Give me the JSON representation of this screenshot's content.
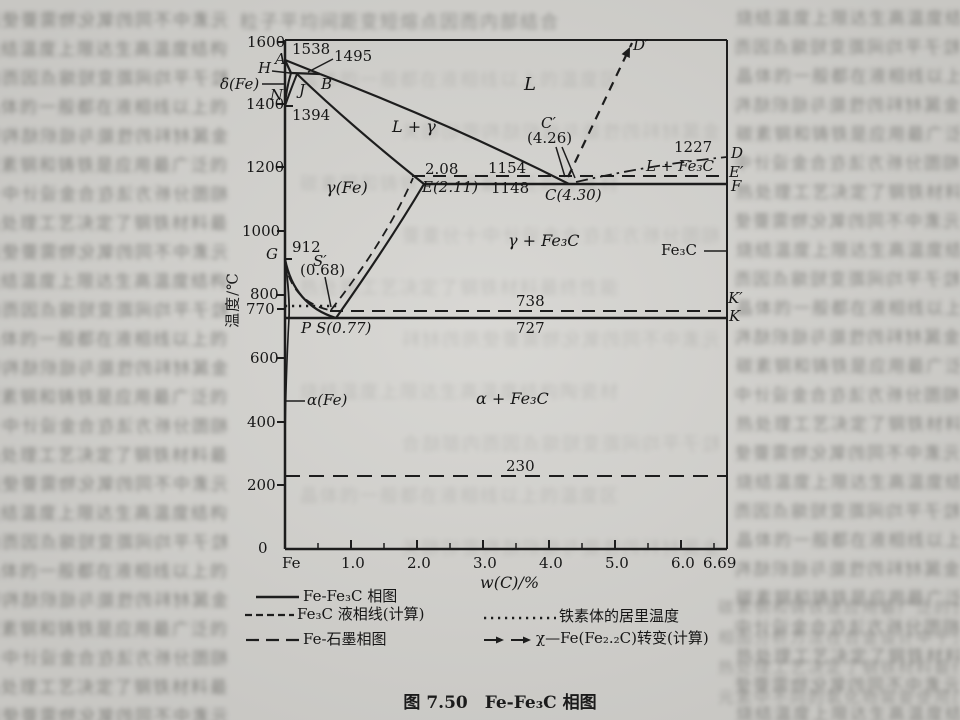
{
  "figure": {
    "caption": "图 7.50　Fe-Fe₃C 相图",
    "xlabel": "w(C)/%",
    "ylabel": "温度/℃"
  },
  "axis": {
    "y": [
      "1600",
      "1400",
      "1200",
      "1000",
      "800",
      "770",
      "600",
      "400",
      "200",
      "0"
    ],
    "x": [
      "Fe",
      "1.0",
      "2.0",
      "3.0",
      "4.0",
      "5.0",
      "6.0",
      "6.69"
    ]
  },
  "labels": {
    "A": "A",
    "t1538": "1538",
    "t1495": "1495",
    "H": "H",
    "B": "B",
    "N": "N",
    "J": "J",
    "t1394": "1394",
    "delta_fe": "δ(Fe)",
    "L": "L",
    "L_gamma": "L + γ",
    "D_prime": "D′",
    "C_prime": "C′",
    "c_prime_val": "(4.26)",
    "t1227": "1227",
    "D": "D",
    "E_prime": "E′",
    "F": "F",
    "L_fe3c": "L + Fe₃C",
    "gamma_fe": "γ(Fe)",
    "t2_08": "2.08",
    "t1154": "1154",
    "E_val": "E(2.11)",
    "t1148": "1148",
    "C_val": "C(4.30)",
    "gamma_fe3c": "γ + Fe₃C",
    "fe3c": "Fe₃C",
    "t912": "912",
    "G": "G",
    "S_prime": "S′",
    "s_prime_val": "(0.68)",
    "P": "P",
    "S_val": "S(0.77)",
    "t738": "738",
    "t727": "727",
    "K_prime": "K′",
    "K": "K",
    "alpha_fe": "α(Fe)",
    "alpha_fe3c": "α + Fe₃C",
    "t230": "230"
  },
  "legend": {
    "items": [
      {
        "style": "solid",
        "label": "Fe-Fe₃C 相图"
      },
      {
        "style": "dashed",
        "label": "Fe₃C 液相线(计算)"
      },
      {
        "style": "longdash",
        "label": "Fe-石墨相图"
      },
      {
        "style": "dotted",
        "label": "铁素体的居里温度"
      },
      {
        "style": "arrows",
        "label": "χ—Fe(Fe₂.₂C)转变(计算)"
      }
    ]
  },
  "noise": {
    "lines": [
      "元素中不同的氧化物需要使用的材料",
      "烧结温度上限达生高温度结构陶瓷材",
      "粒子平均间距变短熔点因而内部结合",
      "晶体的一般都在液相线以上的温度区",
      "金属材料的性能与组织结构密切相关",
      "碳素钢和铸铁是应用最广泛的金属材",
      "相图分析方法在合金设计中十分重要",
      "热处理工艺决定了钢铁材料最终性能"
    ]
  },
  "chart_data": {
    "type": "line",
    "title": "图 7.50 Fe-Fe₃C 相图",
    "xlabel": "w(C)/%",
    "ylabel": "温度/℃",
    "xlim": [
      0,
      6.69
    ],
    "ylim": [
      0,
      1600
    ],
    "x_ticks": [
      "Fe",
      "1.0",
      "2.0",
      "3.0",
      "4.0",
      "5.0",
      "6.0",
      "6.69"
    ],
    "y_ticks": [
      0,
      200,
      400,
      600,
      770,
      800,
      1000,
      1200,
      1400,
      1600
    ],
    "grid": false,
    "legend_position": "below",
    "key_points": [
      {
        "label": "A",
        "wC": 0,
        "T": 1538
      },
      {
        "label": "B",
        "wC": 0.53,
        "T": 1495
      },
      {
        "label": "H",
        "wC": 0.09,
        "T": 1495
      },
      {
        "label": "J",
        "wC": 0.17,
        "T": 1495
      },
      {
        "label": "N",
        "wC": 0,
        "T": 1394
      },
      {
        "label": "E",
        "wC": 2.11,
        "T": 1148
      },
      {
        "label": "E′",
        "wC": 2.08,
        "T": 1154
      },
      {
        "label": "C",
        "wC": 4.3,
        "T": 1148
      },
      {
        "label": "C′",
        "wC": 4.26,
        "T": 1154
      },
      {
        "label": "D",
        "wC": 6.69,
        "T": 1227
      },
      {
        "label": "F",
        "wC": 6.69,
        "T": 1148
      },
      {
        "label": "G",
        "wC": 0,
        "T": 912
      },
      {
        "label": "S",
        "wC": 0.77,
        "T": 727
      },
      {
        "label": "S′",
        "wC": 0.68,
        "T": 738
      },
      {
        "label": "P",
        "wC": 0.02,
        "T": 727
      },
      {
        "label": "K",
        "wC": 6.69,
        "T": 727
      },
      {
        "label": "K′",
        "wC": 6.69,
        "T": 738
      }
    ],
    "isotherms": [
      {
        "T": 1495,
        "style": "solid",
        "name": "peritectic H-J-B"
      },
      {
        "T": 1154,
        "style": "dashed",
        "name": "graphite eutectic E′-C′"
      },
      {
        "T": 1148,
        "style": "solid",
        "name": "Fe₃C eutectic E-C-F"
      },
      {
        "T": 770,
        "style": "dotted",
        "name": "铁素体的居里温度"
      },
      {
        "T": 738,
        "style": "dashed",
        "name": "graphite eutectoid S′-K′"
      },
      {
        "T": 727,
        "style": "solid",
        "name": "Fe₃C eutectoid P-S-K"
      },
      {
        "T": 230,
        "style": "dashed",
        "name": "230 ℃ line"
      },
      {
        "T": 1227,
        "style": "dashdot",
        "name": "χ—Fe(Fe₂.₂C)转变 to D at 6.69"
      }
    ],
    "region_labels": [
      "L",
      "L + γ",
      "δ(Fe)",
      "γ(Fe)",
      "γ + Fe₃C",
      "L + Fe₃C",
      "α(Fe)",
      "α + Fe₃C",
      "Fe₃C"
    ],
    "series": [
      {
        "name": "liquidus A-B-C",
        "style": "solid",
        "points": [
          [
            0,
            1538
          ],
          [
            0.53,
            1495
          ],
          [
            4.3,
            1148
          ]
        ]
      },
      {
        "name": "solidus A-H",
        "style": "solid",
        "points": [
          [
            0,
            1538
          ],
          [
            0.09,
            1495
          ]
        ]
      },
      {
        "name": "H-N / J-N delta boundary",
        "style": "solid",
        "points": [
          [
            0.09,
            1495
          ],
          [
            0,
            1394
          ],
          [
            0.17,
            1495
          ]
        ]
      },
      {
        "name": "solidus J-E",
        "style": "solid",
        "points": [
          [
            0.17,
            1495
          ],
          [
            2.11,
            1148
          ]
        ]
      },
      {
        "name": "Acm S-E",
        "style": "solid",
        "points": [
          [
            0.77,
            727
          ],
          [
            2.11,
            1148
          ]
        ]
      },
      {
        "name": "A3 G-S",
        "style": "solid",
        "points": [
          [
            0,
            912
          ],
          [
            0.77,
            727
          ]
        ]
      },
      {
        "name": "G-P",
        "style": "solid",
        "points": [
          [
            0,
            912
          ],
          [
            0.02,
            727
          ]
        ]
      },
      {
        "name": "Fe₃C liquidus calc C-D′",
        "style": "dashed",
        "points": [
          [
            4.3,
            1148
          ],
          [
            4.9,
            1600
          ]
        ]
      },
      {
        "name": "χ—Fe(Fe₂.₂C) C-D calc",
        "style": "dashdot",
        "points": [
          [
            4.3,
            1155
          ],
          [
            6.69,
            1227
          ]
        ]
      },
      {
        "name": "graphite Acm′ S′-E′",
        "style": "dashed",
        "points": [
          [
            0.68,
            738
          ],
          [
            2.08,
            1154
          ]
        ]
      },
      {
        "name": "graphite A3′ G-S′",
        "style": "dashed",
        "points": [
          [
            0,
            912
          ],
          [
            0.68,
            738
          ]
        ]
      }
    ]
  }
}
